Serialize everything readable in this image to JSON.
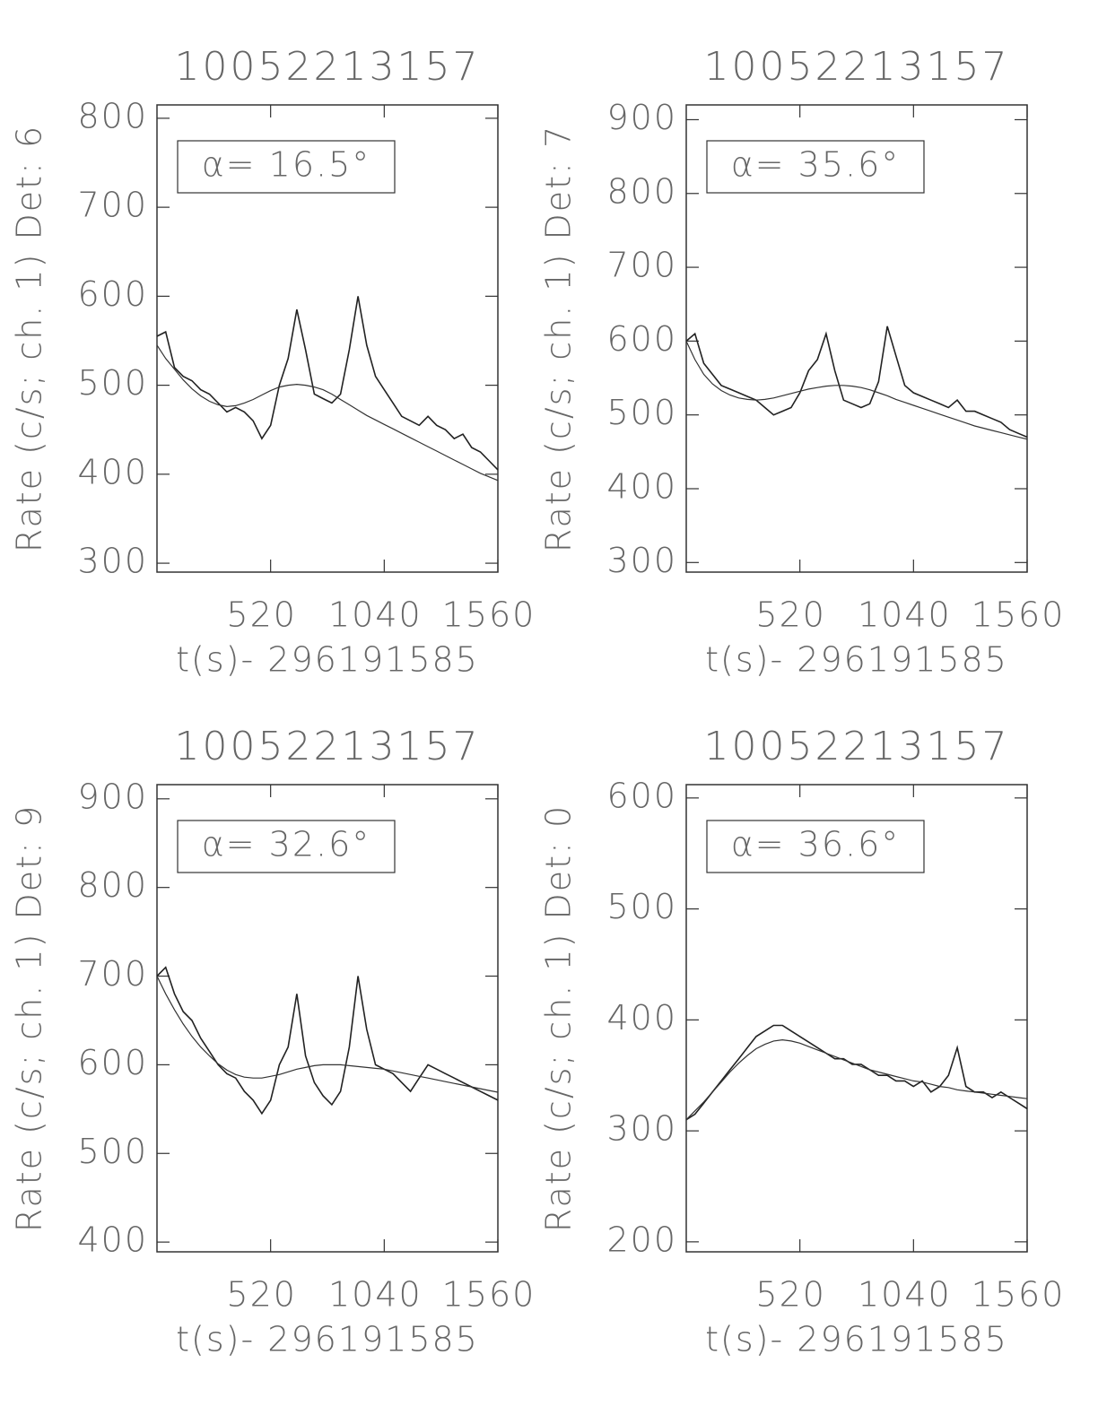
{
  "chart_data": [
    {
      "type": "line",
      "title": "10052213157",
      "annotation": "α= 16.5°",
      "xlabel": "t(s)- 296191585",
      "ylabel": "Rate (c/s; ch. 1) Det: 6",
      "x": [
        0,
        40,
        80,
        120,
        160,
        200,
        240,
        280,
        320,
        360,
        400,
        440,
        480,
        520,
        560,
        600,
        640,
        680,
        720,
        760,
        800,
        840,
        880,
        920,
        960,
        1000,
        1040,
        1080,
        1120,
        1160,
        1200,
        1240,
        1280,
        1320,
        1360,
        1400,
        1440,
        1480,
        1520,
        1560
      ],
      "series": [
        {
          "color": "#222222",
          "values": [
            555,
            560,
            520,
            510,
            505,
            495,
            490,
            480,
            470,
            475,
            470,
            460,
            440,
            455,
            500,
            530,
            585,
            540,
            490,
            485,
            480,
            490,
            540,
            600,
            545,
            510,
            495,
            480,
            465,
            460,
            455,
            465,
            455,
            450,
            440,
            445,
            430,
            425,
            415,
            405
          ]
        },
        {
          "color": "#333333",
          "values": [
            545,
            530,
            518,
            506,
            496,
            488,
            482,
            478,
            476,
            477,
            480,
            484,
            489,
            494,
            498,
            500,
            501,
            500,
            498,
            495,
            490,
            484,
            478,
            472,
            466,
            461,
            456,
            451,
            446,
            441,
            436,
            431,
            426,
            421,
            416,
            411,
            406,
            401,
            397,
            393
          ]
        }
      ],
      "xlim": [
        0,
        1560
      ],
      "xticks": [
        520,
        1040,
        1560
      ],
      "ylim": [
        290,
        815
      ],
      "yticks": [
        300,
        400,
        500,
        600,
        700,
        800
      ]
    },
    {
      "type": "line",
      "title": "10052213157",
      "annotation": "α= 35.6°",
      "xlabel": "t(s)- 296191585",
      "ylabel": "Rate (c/s; ch. 1) Det: 7",
      "x": [
        0,
        40,
        80,
        120,
        160,
        200,
        240,
        280,
        320,
        360,
        400,
        440,
        480,
        520,
        560,
        600,
        640,
        680,
        720,
        760,
        800,
        840,
        880,
        920,
        960,
        1000,
        1040,
        1080,
        1120,
        1160,
        1200,
        1240,
        1280,
        1320,
        1360,
        1400,
        1440,
        1480,
        1520,
        1560
      ],
      "series": [
        {
          "color": "#222222",
          "values": [
            600,
            610,
            570,
            555,
            540,
            535,
            530,
            525,
            520,
            510,
            500,
            505,
            510,
            530,
            560,
            575,
            610,
            560,
            520,
            515,
            510,
            515,
            545,
            620,
            580,
            540,
            530,
            525,
            520,
            515,
            510,
            520,
            505,
            505,
            500,
            495,
            490,
            480,
            475,
            470
          ]
        },
        {
          "color": "#333333",
          "values": [
            600,
            575,
            555,
            542,
            533,
            527,
            523,
            521,
            520,
            521,
            523,
            526,
            529,
            532,
            535,
            537,
            539,
            540,
            540,
            539,
            537,
            534,
            530,
            526,
            521,
            517,
            513,
            509,
            505,
            501,
            497,
            493,
            489,
            485,
            482,
            479,
            476,
            473,
            470,
            467
          ]
        }
      ],
      "xlim": [
        0,
        1560
      ],
      "xticks": [
        520,
        1040,
        1560
      ],
      "ylim": [
        287,
        920
      ],
      "yticks": [
        300,
        400,
        500,
        600,
        700,
        800,
        900
      ]
    },
    {
      "type": "line",
      "title": "10052213157",
      "annotation": "α= 32.6°",
      "xlabel": "t(s)- 296191585",
      "ylabel": "Rate (c/s; ch. 1) Det: 9",
      "x": [
        0,
        40,
        80,
        120,
        160,
        200,
        240,
        280,
        320,
        360,
        400,
        440,
        480,
        520,
        560,
        600,
        640,
        680,
        720,
        760,
        800,
        840,
        880,
        920,
        960,
        1000,
        1040,
        1080,
        1120,
        1160,
        1200,
        1240,
        1280,
        1320,
        1360,
        1400,
        1440,
        1480,
        1520,
        1560
      ],
      "series": [
        {
          "color": "#222222",
          "values": [
            700,
            710,
            680,
            660,
            650,
            630,
            615,
            600,
            590,
            585,
            570,
            560,
            545,
            560,
            600,
            620,
            680,
            610,
            580,
            565,
            555,
            570,
            620,
            700,
            640,
            600,
            595,
            590,
            580,
            570,
            585,
            600,
            595,
            590,
            585,
            580,
            575,
            570,
            565,
            560
          ]
        },
        {
          "color": "#333333",
          "values": [
            700,
            680,
            662,
            646,
            632,
            620,
            610,
            601,
            594,
            589,
            586,
            585,
            585,
            587,
            589,
            592,
            595,
            597,
            599,
            600,
            600,
            600,
            599,
            598,
            597,
            596,
            595,
            593,
            591,
            589,
            587,
            585,
            583,
            581,
            579,
            577,
            575,
            573,
            571,
            569
          ]
        }
      ],
      "xlim": [
        0,
        1560
      ],
      "xticks": [
        520,
        1040,
        1560
      ],
      "ylim": [
        389,
        916
      ],
      "yticks": [
        400,
        500,
        600,
        700,
        800,
        900
      ]
    },
    {
      "type": "line",
      "title": "10052213157",
      "annotation": "α= 36.6°",
      "xlabel": "t(s)- 296191585",
      "ylabel": "Rate (c/s; ch. 1) Det: 0",
      "x": [
        0,
        40,
        80,
        120,
        160,
        200,
        240,
        280,
        320,
        360,
        400,
        440,
        480,
        520,
        560,
        600,
        640,
        680,
        720,
        760,
        800,
        840,
        880,
        920,
        960,
        1000,
        1040,
        1080,
        1120,
        1160,
        1200,
        1240,
        1280,
        1320,
        1360,
        1400,
        1440,
        1480,
        1520,
        1560
      ],
      "series": [
        {
          "color": "#222222",
          "values": [
            310,
            315,
            325,
            335,
            345,
            355,
            365,
            375,
            385,
            390,
            395,
            395,
            390,
            385,
            380,
            375,
            370,
            365,
            365,
            360,
            360,
            355,
            350,
            350,
            345,
            345,
            340,
            345,
            335,
            340,
            350,
            375,
            340,
            335,
            335,
            330,
            335,
            330,
            325,
            320
          ]
        },
        {
          "color": "#333333",
          "values": [
            310,
            318,
            326,
            335,
            344,
            353,
            361,
            368,
            374,
            378,
            381,
            382,
            381,
            379,
            376,
            373,
            370,
            367,
            364,
            361,
            358,
            355,
            353,
            351,
            349,
            347,
            345,
            344,
            342,
            340,
            339,
            337,
            336,
            335,
            334,
            333,
            332,
            331,
            330,
            329
          ]
        }
      ],
      "xlim": [
        0,
        1560
      ],
      "xticks": [
        520,
        1040,
        1560
      ],
      "ylim": [
        191,
        612
      ],
      "yticks": [
        200,
        300,
        400,
        500,
        600
      ]
    }
  ]
}
